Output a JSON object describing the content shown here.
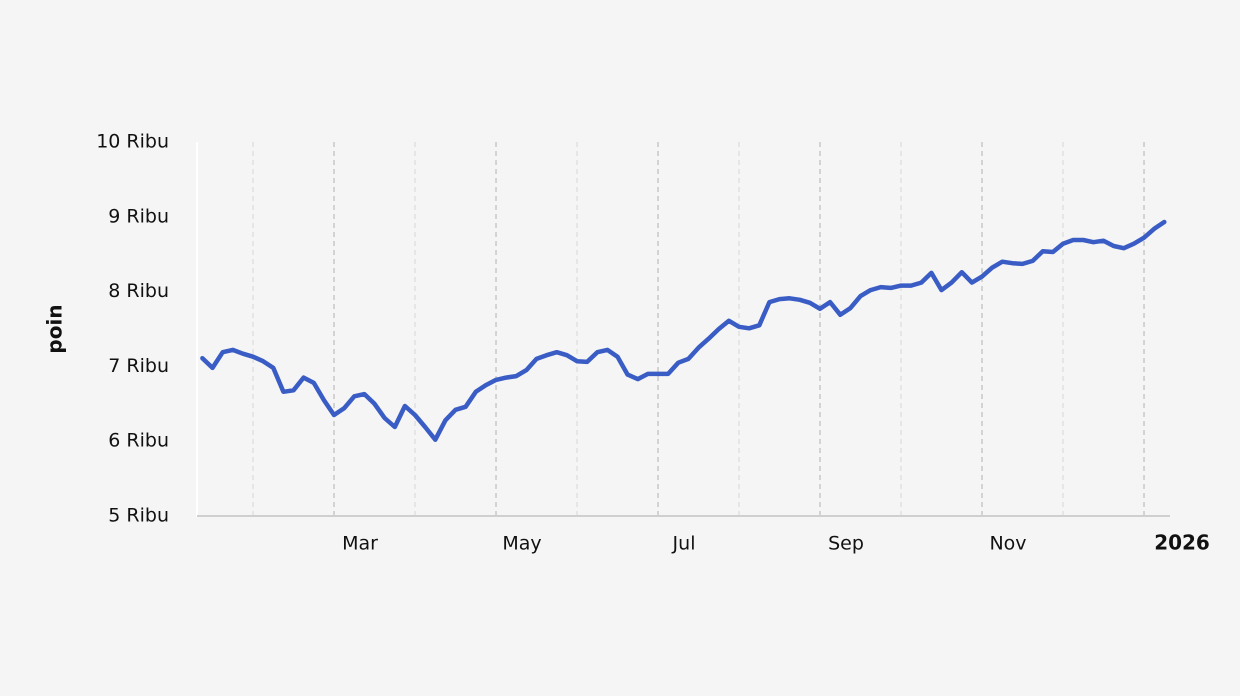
{
  "chart_data": {
    "type": "line",
    "y_label": "poin",
    "categories": [
      null,
      null,
      null,
      null,
      null,
      null,
      null,
      null,
      null,
      null,
      null,
      null,
      null,
      "Mar",
      null,
      null,
      null,
      null,
      null,
      null,
      null,
      null,
      null,
      null,
      null,
      null,
      null,
      null,
      null,
      "May",
      null,
      null,
      null,
      null,
      null,
      null,
      null,
      null,
      null,
      null,
      null,
      null,
      null,
      null,
      null,
      "Jul",
      null,
      null,
      null,
      null,
      null,
      null,
      null,
      null,
      null,
      null,
      null,
      null,
      null,
      null,
      null,
      "Sep",
      null,
      null,
      null,
      null,
      null,
      null,
      null,
      null,
      null,
      null,
      null,
      null,
      null,
      null,
      null,
      "Nov",
      null,
      null,
      null,
      null,
      null,
      null,
      null,
      null,
      null,
      null,
      null,
      null,
      null,
      null,
      null,
      "2026",
      null,
      null
    ],
    "series": [
      {
        "name": "poin",
        "color": "#3a5cc5",
        "values": [
          7110,
          6980,
          7190,
          7220,
          7170,
          7130,
          7070,
          6980,
          6660,
          6680,
          6850,
          6780,
          6550,
          6350,
          6440,
          6600,
          6630,
          6500,
          6310,
          6190,
          6470,
          6350,
          6190,
          6020,
          6280,
          6420,
          6460,
          6660,
          6750,
          6820,
          6850,
          6870,
          6950,
          7100,
          7150,
          7190,
          7150,
          7070,
          7060,
          7190,
          7220,
          7130,
          6890,
          6830,
          6900,
          6900,
          6900,
          7050,
          7100,
          7250,
          7370,
          7500,
          7610,
          7530,
          7510,
          7550,
          7860,
          7900,
          7910,
          7890,
          7850,
          7770,
          7860,
          7690,
          7780,
          7940,
          8020,
          8060,
          8050,
          8080,
          8080,
          8120,
          8250,
          8020,
          8120,
          8260,
          8120,
          8200,
          8320,
          8400,
          8380,
          8370,
          8410,
          8540,
          8530,
          8640,
          8690,
          8690,
          8660,
          8680,
          8610,
          8580,
          8640,
          8720,
          8840,
          8930
        ]
      }
    ],
    "ylim": [
      5000,
      10000
    ],
    "yticks": [
      {
        "value": 5000,
        "label": "5 Ribu"
      },
      {
        "value": 6000,
        "label": "6 Ribu"
      },
      {
        "value": 7000,
        "label": "7 Ribu"
      },
      {
        "value": 8000,
        "label": "8 Ribu"
      },
      {
        "value": 9000,
        "label": "9 Ribu"
      },
      {
        "value": 10000,
        "label": "10 Ribu"
      }
    ],
    "grid_x": true,
    "grid_x_minor": true
  }
}
